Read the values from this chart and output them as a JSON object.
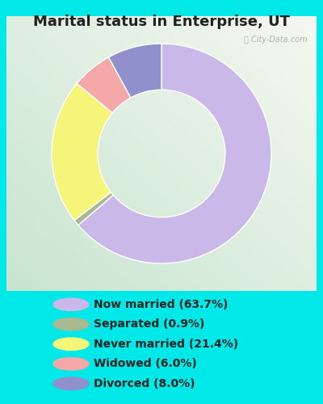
{
  "title": "Marital status in Enterprise, UT",
  "slices": [
    63.7,
    0.9,
    21.4,
    6.0,
    8.0
  ],
  "labels": [
    "Now married (63.7%)",
    "Separated (0.9%)",
    "Never married (21.4%)",
    "Widowed (6.0%)",
    "Divorced (8.0%)"
  ],
  "colors": [
    "#c9b8e8",
    "#a8b890",
    "#f5f57a",
    "#f4a8a8",
    "#9090cc"
  ],
  "bg_color_outer": "#00e8e8",
  "bg_color_chart_top_left": "#d0ead8",
  "bg_color_chart_bottom_right": "#e8f5e8",
  "watermark": "City-Data.com",
  "title_fontsize": 13,
  "legend_fontsize": 10,
  "donut_width": 0.42,
  "startangle": 90,
  "title_color": "#222222"
}
